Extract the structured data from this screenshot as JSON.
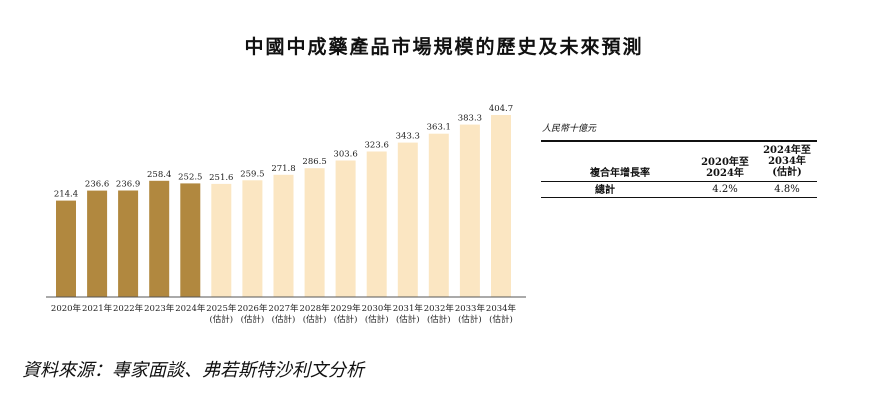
{
  "chart_data": {
    "type": "bar",
    "title": "中國中成藥產品市場規模的歷史及未來預測",
    "unit_label": "人民幣十億元",
    "categories": [
      [
        "2020年"
      ],
      [
        "2021年"
      ],
      [
        "2022年"
      ],
      [
        "2023年"
      ],
      [
        "2024年"
      ],
      [
        "2025年",
        "(估計)"
      ],
      [
        "2026年",
        "(估計)"
      ],
      [
        "2027年",
        "(估計)"
      ],
      [
        "2028年",
        "(估計)"
      ],
      [
        "2029年",
        "(估計)"
      ],
      [
        "2030年",
        "(估計)"
      ],
      [
        "2031年",
        "(估計)"
      ],
      [
        "2032年",
        "(估計)"
      ],
      [
        "2033年",
        "(估計)"
      ],
      [
        "2034年",
        "(估計)"
      ]
    ],
    "values": [
      214.4,
      236.6,
      236.9,
      258.4,
      252.5,
      251.6,
      259.5,
      271.8,
      286.5,
      303.6,
      323.6,
      343.3,
      363.1,
      383.3,
      404.7
    ],
    "value_labels": [
      "214.4",
      "236.6",
      "236.9",
      "258.4",
      "252.5",
      "251.6",
      "259.5",
      "271.8",
      "286.5",
      "303.6",
      "323.6",
      "343.3",
      "363.1",
      "383.3",
      "404.7"
    ],
    "series_kind": [
      "historical",
      "historical",
      "historical",
      "historical",
      "historical",
      "forecast",
      "forecast",
      "forecast",
      "forecast",
      "forecast",
      "forecast",
      "forecast",
      "forecast",
      "forecast",
      "forecast"
    ],
    "colors": {
      "historical": "#b1883f",
      "forecast": "#fbe6c2",
      "axis": "#555555",
      "label": "#222222"
    },
    "ylim": [
      0,
      404.7
    ],
    "grid": false
  },
  "cagr_table": {
    "row_header": "複合年增長率",
    "col1_lines": [
      "2020年至",
      "2024年"
    ],
    "col2_lines": [
      "2024年至",
      "2034年",
      "(估計)"
    ],
    "row_label": "總計",
    "col1_value": "4.2%",
    "col2_value": "4.8%"
  },
  "source": "資料來源：專家面談、弗若斯特沙利文分析"
}
